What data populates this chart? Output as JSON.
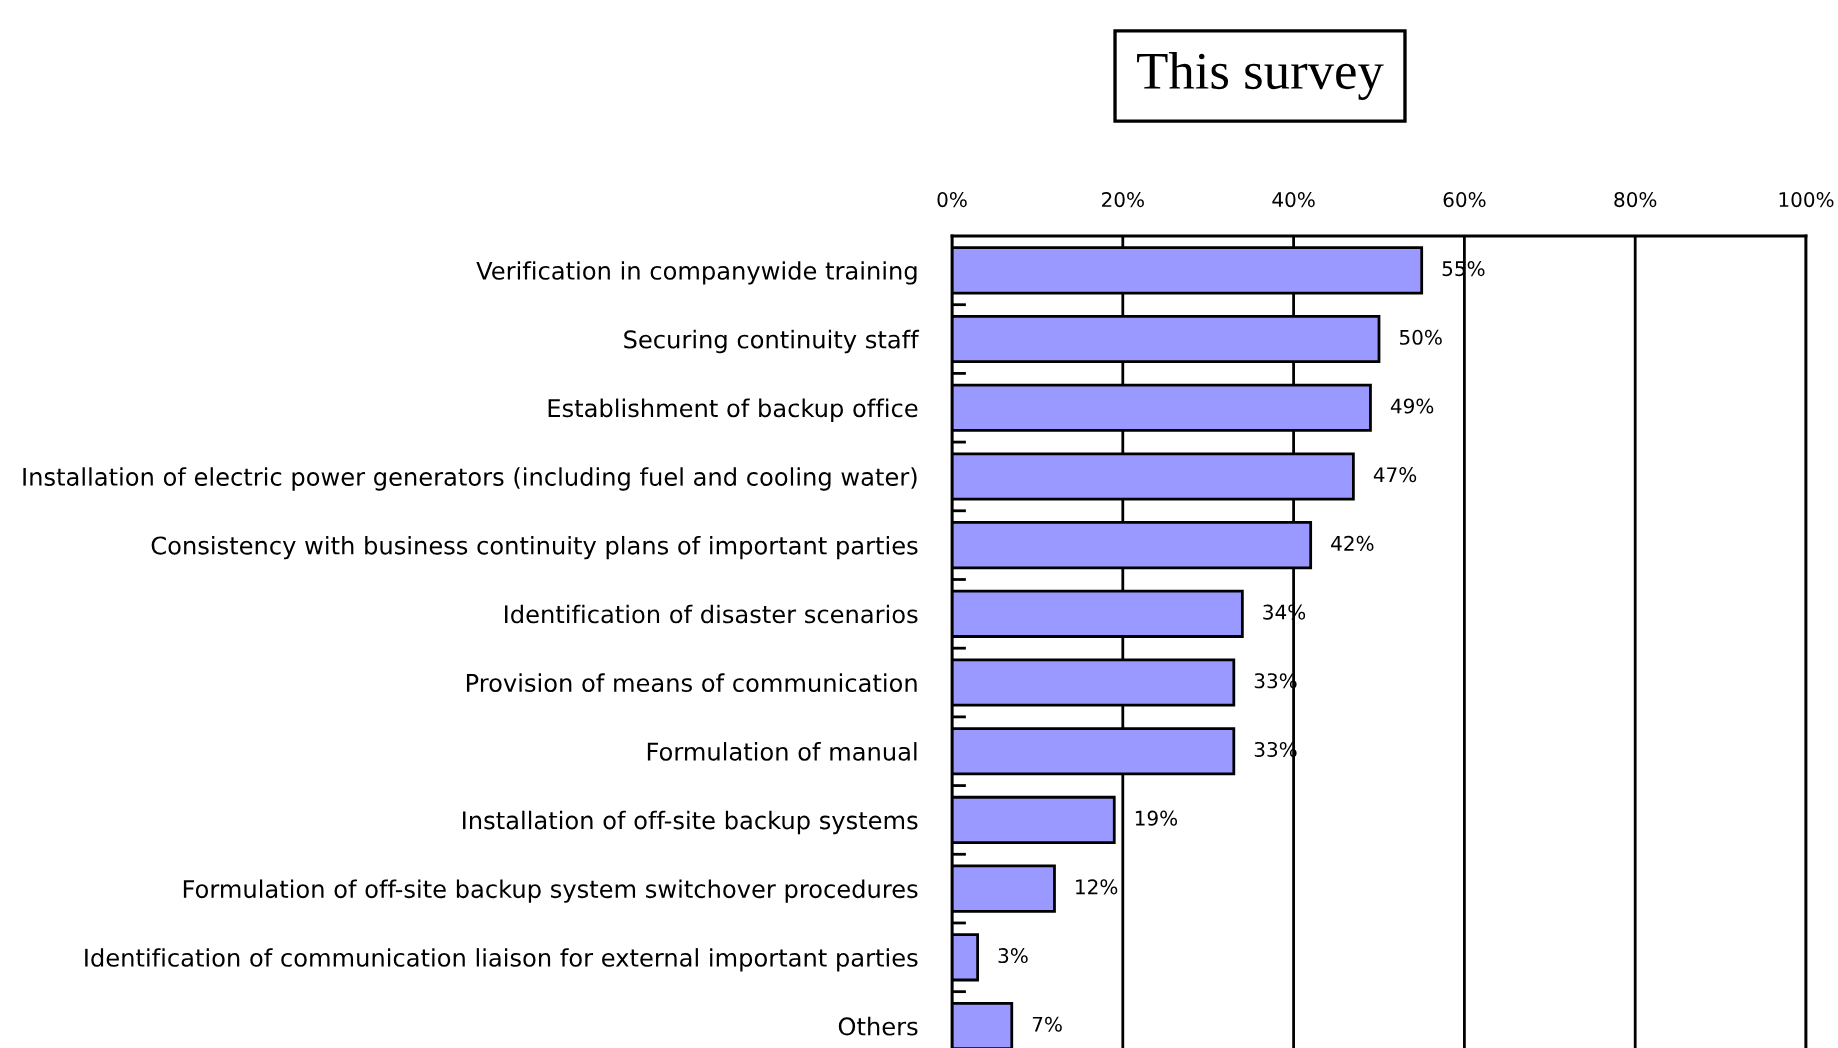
{
  "chart_data": {
    "type": "bar",
    "orientation": "horizontal",
    "title": "This survey",
    "categories": [
      "Verification in companywide training",
      "Securing continuity staff",
      "Establishment of backup office",
      "Installation of electric power generators (including fuel and cooling water)",
      "Consistency with business continuity plans of important parties",
      "Identification of disaster scenarios",
      "Provision of means of communication",
      "Formulation of manual",
      "Installation of off-site backup systems",
      "Formulation of off-site backup system switchover procedures",
      "Identification of communication liaison for external important parties",
      "Others"
    ],
    "values": [
      55,
      50,
      49,
      47,
      42,
      34,
      33,
      33,
      19,
      12,
      3,
      7
    ],
    "value_labels": [
      "55%",
      "50%",
      "49%",
      "47%",
      "42%",
      "34%",
      "33%",
      "33%",
      "19%",
      "12%",
      "3%",
      "7%"
    ],
    "color": "#9999ff",
    "xlim": [
      0,
      100
    ],
    "xticks": [
      {
        "value": 0,
        "label": "0%"
      },
      {
        "value": 20,
        "label": "20%"
      },
      {
        "value": 40,
        "label": "40%"
      },
      {
        "value": 60,
        "label": "60%"
      },
      {
        "value": 80,
        "label": "80%"
      },
      {
        "value": 100,
        "label": "100%"
      }
    ],
    "grid": "x",
    "legend": false
  }
}
